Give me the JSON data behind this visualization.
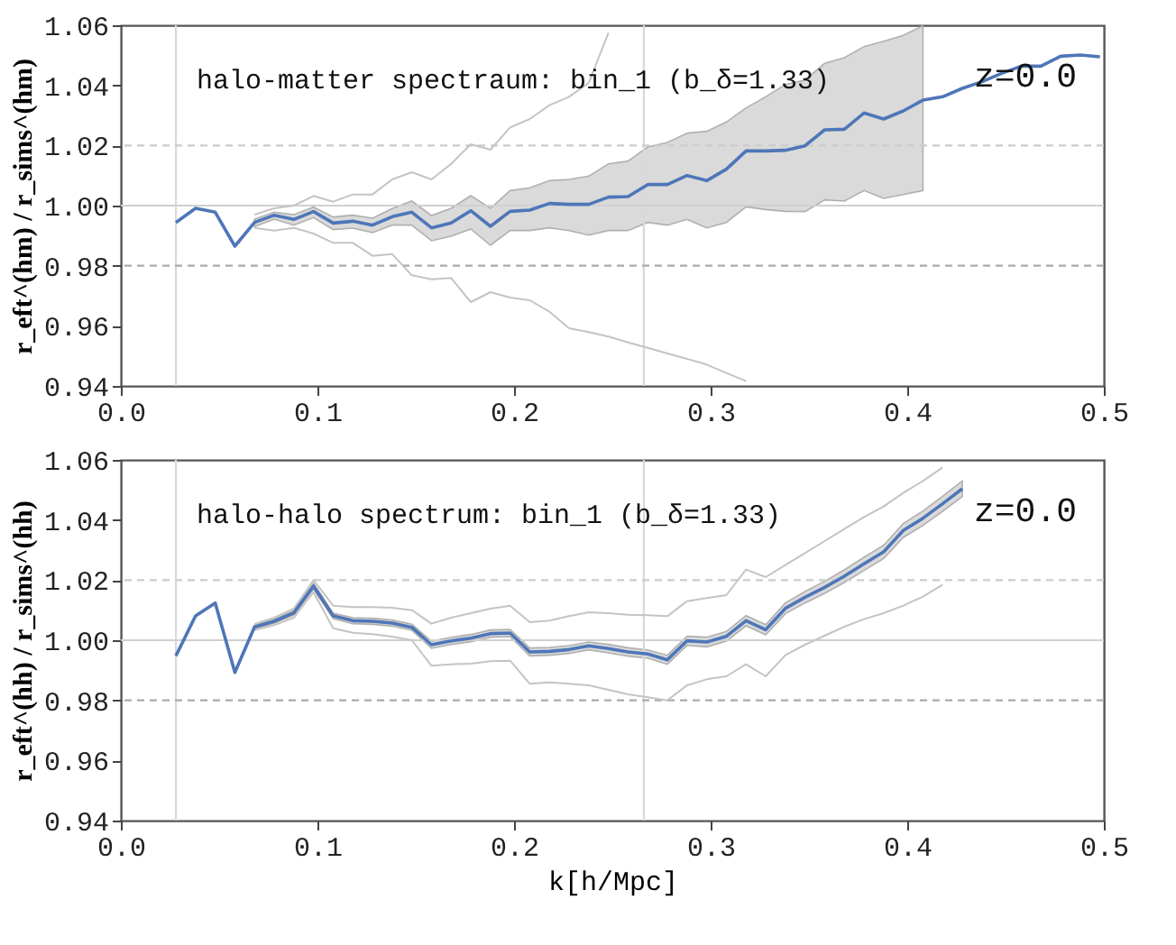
{
  "chart_data": [
    {
      "type": "line",
      "ylabel": "r_eft^(hm) / r_sims^(hm)",
      "annotations": [
        "halo-matter spectraum: bin_1 (b_δ=1.33)",
        "z=0.0"
      ],
      "x": [
        0.028,
        0.038,
        0.048,
        0.058,
        0.068,
        0.078,
        0.088,
        0.098,
        0.108,
        0.118,
        0.128,
        0.138,
        0.148,
        0.158,
        0.168,
        0.178,
        0.188,
        0.198,
        0.208,
        0.218,
        0.228,
        0.238,
        0.248,
        0.258,
        0.268,
        0.278,
        0.288,
        0.298,
        0.308,
        0.318,
        0.328,
        0.338,
        0.348,
        0.358,
        0.368,
        0.378,
        0.388,
        0.398,
        0.408,
        0.418,
        0.428,
        0.438,
        0.448,
        0.458,
        0.468,
        0.478,
        0.488,
        0.498
      ],
      "series": [
        {
          "type": "line",
          "color": "#c4c4c4",
          "values": [
            null,
            null,
            null,
            null,
            0.9926,
            0.9917,
            0.9926,
            0.9907,
            0.9876,
            0.9876,
            0.9833,
            0.9839,
            0.9768,
            0.9755,
            0.9759,
            0.9679,
            0.9712,
            0.9694,
            0.9685,
            0.9647,
            0.9592,
            0.9579,
            0.9564,
            0.9545,
            0.9527,
            0.9508,
            0.949,
            0.9471,
            0.9443,
            0.9416,
            null,
            null,
            null,
            null,
            null,
            null,
            null,
            null,
            null,
            null,
            null,
            null,
            null,
            null,
            null,
            null,
            null,
            null
          ]
        },
        {
          "type": "line",
          "color": "#c4c4c4",
          "values": [
            null,
            null,
            null,
            null,
            0.997,
            0.9991,
            1.0,
            1.0032,
            1.0013,
            1.0037,
            1.0037,
            1.0087,
            1.0111,
            1.0087,
            1.0139,
            1.0204,
            1.0186,
            1.026,
            1.0288,
            1.0334,
            1.0362,
            1.0408,
            1.0575,
            null,
            null,
            null,
            null,
            null,
            null,
            null,
            null,
            null,
            null,
            null,
            null,
            null,
            null,
            null,
            null,
            null,
            null,
            null,
            null,
            null,
            null,
            null,
            null,
            null
          ]
        },
        {
          "color": "#4e76b8",
          "values": [
            0.9944,
            0.9991,
            0.9978,
            0.9865,
            0.9944,
            0.9968,
            0.9954,
            0.998,
            0.9942,
            0.9948,
            0.9935,
            0.9963,
            0.9978,
            0.9926,
            0.9942,
            0.9983,
            0.9931,
            0.9981,
            0.9985,
            1.0007,
            1.0004,
            1.0004,
            1.0028,
            1.003,
            1.007,
            1.007,
            1.01,
            1.0083,
            1.0121,
            1.0182,
            1.0182,
            1.0184,
            1.0199,
            1.0252,
            1.0254,
            1.0308,
            1.0288,
            1.0315,
            1.0351,
            1.0362,
            1.039,
            1.0412,
            1.044,
            1.0464,
            1.0464,
            1.0497,
            1.0501,
            1.0495
          ],
          "lower": [
            null,
            null,
            null,
            null,
            0.993,
            0.9955,
            0.9935,
            0.996,
            0.992,
            0.9925,
            0.991,
            0.9935,
            0.9935,
            0.9883,
            0.9898,
            0.9922,
            0.9868,
            0.9917,
            0.9917,
            0.9926,
            0.9917,
            0.9902,
            0.9917,
            0.9917,
            0.9944,
            0.9935,
            0.9954,
            0.9926,
            0.9944,
            0.9996,
            0.9987,
            0.9981,
            0.998,
            1.0019,
            1.0015,
            1.005,
            1.0024,
            1.0037,
            1.005,
            null,
            null,
            null,
            null,
            null,
            null,
            null,
            null,
            null
          ],
          "upper": [
            null,
            null,
            null,
            null,
            0.9955,
            0.9978,
            0.997,
            0.9995,
            0.9962,
            0.9968,
            0.9958,
            0.999,
            1.0015,
            0.9967,
            0.9991,
            1.0033,
            0.9991,
            1.005,
            1.0059,
            1.0083,
            1.0087,
            1.0098,
            1.0139,
            1.0148,
            1.0195,
            1.021,
            1.0241,
            1.0247,
            1.0278,
            1.0325,
            1.0362,
            1.0403,
            1.0418,
            1.0473,
            1.0492,
            1.0529,
            1.0547,
            1.0566,
            1.0599,
            null,
            null,
            null,
            null,
            null,
            null,
            null,
            null,
            null
          ]
        }
      ],
      "xlim": [
        0,
        0.5
      ],
      "ylim": [
        0.94,
        1.06
      ],
      "xticks": [
        {
          "value": 0,
          "label": "0.0"
        },
        0.1,
        0.2,
        0.3,
        0.4,
        0.5
      ],
      "yticks": [
        0.94,
        0.96,
        0.98,
        {
          "value": 1.0,
          "label": "1.00"
        },
        1.02,
        1.04,
        1.06
      ],
      "ref_lines": [
        {
          "axis": "x",
          "value": 0.028,
          "color": "#d9d9d9",
          "line_style": "solid"
        },
        {
          "axis": "x",
          "value": 0.266,
          "color": "#d9d9d9",
          "line_style": "solid"
        },
        {
          "axis": "y",
          "value": 1.0,
          "color": "#d0d0d0",
          "line_style": "solid"
        },
        {
          "axis": "y",
          "value": 0.98,
          "color": "#aaaaaa",
          "line_style": "dashed"
        },
        {
          "axis": "y",
          "value": 1.02,
          "color": "#cccccc",
          "line_style": "dashed"
        }
      ],
      "grid": false
    },
    {
      "type": "line",
      "ylabel": "r_eft^(hh) / r_sims^(hh)",
      "xlabel": "k[h/Mpc]",
      "annotations": [
        "halo-halo spectrum: bin_1 (b_δ=1.33)",
        "z=0.0"
      ],
      "x": [
        0.028,
        0.038,
        0.048,
        0.058,
        0.068,
        0.078,
        0.088,
        0.098,
        0.108,
        0.118,
        0.128,
        0.138,
        0.148,
        0.158,
        0.168,
        0.178,
        0.188,
        0.198,
        0.208,
        0.218,
        0.228,
        0.238,
        0.248,
        0.258,
        0.268,
        0.278,
        0.288,
        0.298,
        0.308,
        0.318,
        0.328,
        0.338,
        0.348,
        0.358,
        0.368,
        0.378,
        0.388,
        0.398,
        0.408,
        0.418,
        0.428
      ],
      "series": [
        {
          "type": "line",
          "color": "#c4c4c4",
          "values": [
            null,
            null,
            null,
            null,
            1.0034,
            1.005,
            1.0075,
            1.016,
            1.004,
            1.0025,
            1.002,
            1.0012,
            1.0,
            0.9915,
            0.992,
            0.9922,
            0.993,
            0.9932,
            0.9855,
            0.986,
            0.9855,
            0.985,
            0.9835,
            0.982,
            0.981,
            0.98,
            0.985,
            0.987,
            0.988,
            0.992,
            0.988,
            0.995,
            0.9985,
            1.0015,
            1.0045,
            1.007,
            1.009,
            1.0115,
            1.0145,
            1.0185,
            null
          ]
        },
        {
          "type": "line",
          "color": "#c4c4c4",
          "values": [
            null,
            null,
            null,
            null,
            1.0054,
            1.0075,
            1.0105,
            1.02,
            1.0115,
            1.011,
            1.011,
            1.0108,
            1.01,
            1.0055,
            1.0075,
            1.009,
            1.0105,
            1.0115,
            1.006,
            1.0065,
            1.008,
            1.0093,
            1.009,
            1.0085,
            1.0083,
            1.008,
            1.013,
            1.014,
            1.015,
            1.0235,
            1.021,
            1.025,
            1.029,
            1.033,
            1.037,
            1.041,
            1.0445,
            1.049,
            1.053,
            1.0575,
            null
          ]
        },
        {
          "color": "#4e76b8",
          "values": [
            0.9948,
            1.0081,
            1.0124,
            0.9893,
            1.0044,
            1.0063,
            1.0091,
            1.018,
            1.0081,
            1.0065,
            1.0063,
            1.0057,
            1.0043,
            0.9985,
            0.9998,
            1.0007,
            1.0022,
            1.0024,
            0.9961,
            0.9963,
            0.9969,
            0.9981,
            0.9972,
            0.9961,
            0.9954,
            0.9935,
            0.9998,
            0.9994,
            1.0013,
            1.0065,
            1.0035,
            1.0106,
            1.0143,
            1.0176,
            1.0213,
            1.0254,
            1.0294,
            1.0365,
            1.0406,
            1.0454,
            1.0504
          ],
          "lower": [
            null,
            null,
            null,
            null,
            1.0038,
            1.0056,
            1.0084,
            1.017,
            1.0072,
            1.0055,
            1.0053,
            1.0047,
            1.0033,
            0.9973,
            0.9986,
            0.9995,
            1.001,
            1.0012,
            0.9948,
            0.995,
            0.9956,
            0.9968,
            0.9958,
            0.9947,
            0.994,
            0.992,
            0.9983,
            0.9978,
            0.9997,
            1.0048,
            1.0018,
            1.0088,
            1.0124,
            1.0156,
            1.0192,
            1.0232,
            1.0272,
            1.0342,
            1.0382,
            1.0429,
            1.0478
          ],
          "upper": [
            null,
            null,
            null,
            null,
            1.005,
            1.007,
            1.0098,
            1.019,
            1.009,
            1.0075,
            1.0073,
            1.0067,
            1.0053,
            0.9997,
            1.001,
            1.0019,
            1.0034,
            1.0036,
            0.9974,
            0.9976,
            0.9982,
            0.9994,
            0.9986,
            0.9975,
            0.9968,
            0.995,
            1.0013,
            1.001,
            1.0029,
            1.0082,
            1.0052,
            1.0124,
            1.0162,
            1.0196,
            1.0234,
            1.0276,
            1.0316,
            1.0388,
            1.043,
            1.0479,
            1.053
          ]
        }
      ],
      "xlim": [
        0,
        0.5
      ],
      "ylim": [
        0.94,
        1.06
      ],
      "xticks": [
        {
          "value": 0,
          "label": "0.0"
        },
        0.1,
        0.2,
        0.3,
        0.4,
        0.5
      ],
      "yticks": [
        0.94,
        0.96,
        0.98,
        {
          "value": 1.0,
          "label": "1.00"
        },
        1.02,
        1.04,
        1.06
      ],
      "ref_lines": [
        {
          "axis": "x",
          "value": 0.028,
          "color": "#d9d9d9",
          "line_style": "solid"
        },
        {
          "axis": "x",
          "value": 0.266,
          "color": "#d9d9d9",
          "line_style": "solid"
        },
        {
          "axis": "y",
          "value": 1.0,
          "color": "#d0d0d0",
          "line_style": "solid"
        },
        {
          "axis": "y",
          "value": 0.98,
          "color": "#aaaaaa",
          "line_style": "dashed"
        },
        {
          "axis": "y",
          "value": 1.02,
          "color": "#cccccc",
          "line_style": "dashed"
        }
      ],
      "grid": false
    }
  ]
}
